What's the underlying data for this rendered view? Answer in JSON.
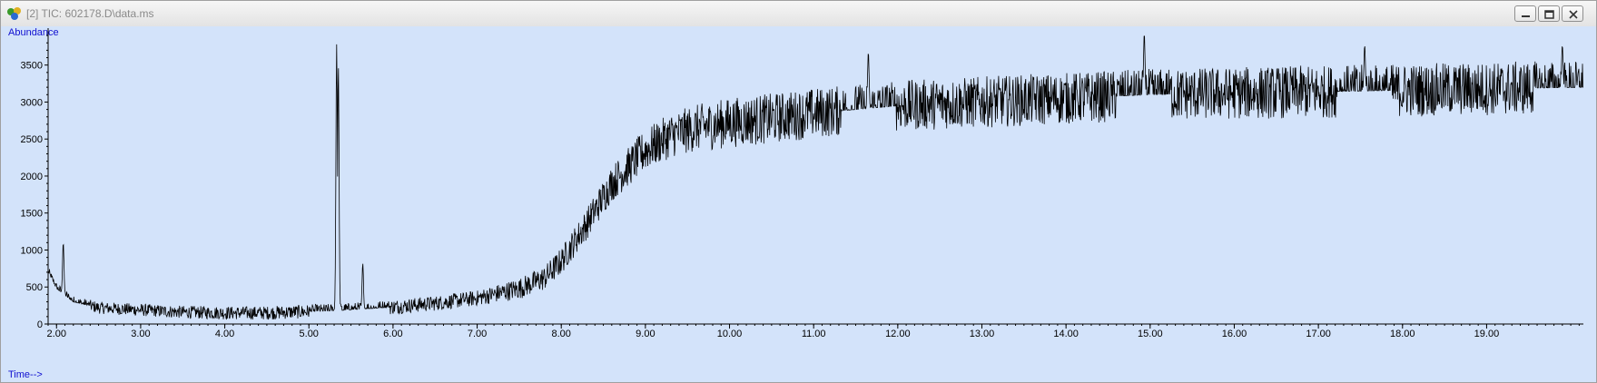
{
  "window": {
    "title": "[2] TIC: 602178.D\\data.ms",
    "icon": "chemstation-app-icon"
  },
  "controls": {
    "minimize_icon": "minimize-icon",
    "restore_icon": "restore-icon",
    "close_icon": "close-icon"
  },
  "colors": {
    "plot_background": "#d3e3fa",
    "trace": "#000000",
    "axis_label": "#1010d0"
  },
  "chart_data": {
    "type": "line",
    "title": "",
    "ylabel": "Abundance",
    "xlabel": "Time-->",
    "xlim": [
      1.9,
      20.15
    ],
    "ylim": [
      0,
      3950
    ],
    "yticks": [
      0,
      500,
      1000,
      1500,
      2000,
      2500,
      3000,
      3500
    ],
    "ytick_labels": [
      "0",
      "500",
      "1000",
      "1500",
      "2000",
      "2500",
      "3000",
      "3500"
    ],
    "xticks": [
      2,
      3,
      4,
      5,
      6,
      7,
      8,
      9,
      10,
      11,
      12,
      13,
      14,
      15,
      16,
      17,
      18,
      19
    ],
    "xtick_labels": [
      "2.00",
      "3.00",
      "4.00",
      "5.00",
      "6.00",
      "7.00",
      "8.00",
      "9.00",
      "10.00",
      "11.00",
      "12.00",
      "13.00",
      "14.00",
      "15.00",
      "16.00",
      "17.00",
      "18.00",
      "19.00"
    ],
    "grid": false,
    "series": [
      {
        "baseline": {
          "x": [
            1.9,
            2.0,
            2.2,
            2.5,
            3.0,
            3.5,
            4.0,
            4.5,
            5.0,
            5.3,
            5.6,
            6.0,
            6.5,
            7.0,
            7.5,
            7.8,
            8.0,
            8.3,
            8.6,
            9.0,
            9.3,
            9.6,
            10.0,
            10.5,
            11.0,
            12.0,
            13.0,
            14.0,
            15.0,
            16.0,
            17.0,
            18.0,
            19.0,
            20.15
          ],
          "y": [
            700,
            480,
            300,
            220,
            190,
            160,
            150,
            150,
            170,
            180,
            200,
            230,
            280,
            350,
            480,
            620,
            850,
            1350,
            1900,
            2350,
            2550,
            2650,
            2720,
            2780,
            2850,
            2950,
            3000,
            3050,
            3100,
            3120,
            3140,
            3160,
            3180,
            3200
          ]
        },
        "peaks": [
          {
            "x": 2.08,
            "y": 1100
          },
          {
            "x": 5.33,
            "y": 3780
          },
          {
            "x": 5.35,
            "y": 3500
          },
          {
            "x": 5.64,
            "y": 820
          },
          {
            "x": 11.65,
            "y": 3680
          },
          {
            "x": 14.93,
            "y": 3930
          },
          {
            "x": 17.55,
            "y": 3770
          },
          {
            "x": 19.9,
            "y": 3770
          }
        ],
        "noise_amplitude": {
          "x": [
            1.9,
            7.0,
            8.0,
            9.0,
            10.0,
            20.15
          ],
          "y": [
            60,
            80,
            140,
            220,
            260,
            280
          ]
        }
      }
    ]
  }
}
